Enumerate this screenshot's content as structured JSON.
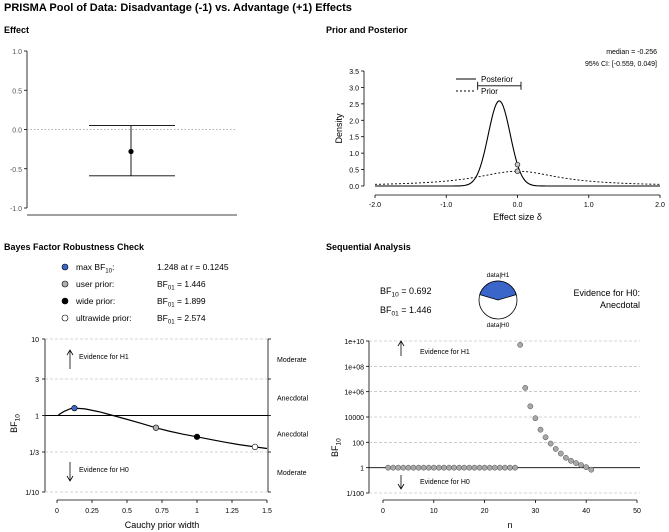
{
  "page_title": "PRISMA Pool of Data: Disadvantage (-1) vs. Advantage (+1) Effects",
  "panels": {
    "effect": "Effect",
    "prior_posterior": "Prior and Posterior",
    "robustness": "Bayes Factor Robustness Check",
    "sequential": "Sequential Analysis"
  },
  "colors": {
    "max_bf_point": "#3b66c9",
    "user_prior_point": "#b0b0b0",
    "wide_prior_point": "#000000",
    "ultrawide_prior_point": "#ffffff",
    "sequential_point": "#a8a8a8",
    "pie_h1": "#3b66c9",
    "pie_h0": "#ffffff"
  },
  "chart_data": [
    {
      "id": "effect",
      "type": "errorbar",
      "yticks": [
        1.0,
        0.5,
        0.0,
        -0.5,
        -1.0
      ],
      "ytick_labels": [
        "1.0",
        "0.5",
        "0.0",
        "-0.5",
        "-1.0"
      ],
      "ylim": [
        -1.0,
        1.0
      ],
      "point": -0.28,
      "ci": [
        -0.59,
        0.05
      ],
      "reference_line": 0.0
    },
    {
      "id": "prior_posterior",
      "type": "line",
      "xlabel": "Effect size δ",
      "ylabel": "Density",
      "xlim": [
        -2,
        2
      ],
      "ylim": [
        0,
        3.5
      ],
      "xticks": [
        -2,
        -1,
        0,
        1,
        2
      ],
      "xtick_labels": [
        "-2.0",
        "-1.0",
        "0.0",
        "1.0",
        "2.0"
      ],
      "yticks": [
        0,
        0.5,
        1,
        1.5,
        2,
        2.5,
        3,
        3.5
      ],
      "ytick_labels": [
        "0.0",
        "0.5",
        "1.0",
        "1.5",
        "2.0",
        "2.5",
        "3.0",
        "3.5"
      ],
      "series": [
        {
          "name": "Posterior",
          "style": "solid",
          "mean": -0.256,
          "sd": 0.154
        },
        {
          "name": "Prior",
          "style": "dotted",
          "cauchy_scale": 0.707
        }
      ],
      "median_label": "median = -0.256",
      "ci_label": "95% CI: [-0.559, 0.049]",
      "ci": [
        -0.559,
        0.049
      ],
      "ci_bar_y": 3.05,
      "point_at_zero": {
        "x": 0,
        "posterior": 0.65,
        "prior": 0.45
      }
    },
    {
      "id": "robustness",
      "type": "line",
      "xlabel": "Cauchy prior width",
      "ylabel": "BF",
      "ylabel_sub": "10",
      "xlim": [
        0,
        1.5
      ],
      "xticks": [
        0,
        0.25,
        0.5,
        0.75,
        1,
        1.25,
        1.5
      ],
      "xtick_labels": [
        "0",
        "0.25",
        "0.5",
        "0.75",
        "1",
        "1.25",
        "1.5"
      ],
      "yscale": "log",
      "ylim": [
        0.1,
        10
      ],
      "yticks": [
        10,
        3,
        1,
        0.3333,
        0.1
      ],
      "ytick_labels": [
        "10",
        "3",
        "1",
        "1/3",
        "1/10"
      ],
      "right_labels": [
        "Moderate",
        "Anecdotal",
        "Anecdotal",
        "Moderate"
      ],
      "evidence_h1": "Evidence for H1",
      "evidence_h0": "Evidence for H0",
      "curve": {
        "x": [
          0.01,
          0.05,
          0.1,
          0.1245,
          0.2,
          0.3,
          0.4,
          0.5,
          0.6,
          0.707,
          0.8,
          0.9,
          1.0,
          1.1,
          1.2,
          1.3,
          1.414,
          1.5
        ],
        "y": [
          1.02,
          1.13,
          1.235,
          1.248,
          1.22,
          1.12,
          1.0,
          0.89,
          0.79,
          0.691,
          0.625,
          0.57,
          0.527,
          0.485,
          0.448,
          0.416,
          0.389,
          0.37
        ]
      },
      "legend": [
        {
          "label": "max BF",
          "label_sub": "10",
          "label_suffix": ":",
          "value": "1.248 at r = 0.1245",
          "color": "#3b66c9"
        },
        {
          "label": "user prior:",
          "value_prefix": "BF",
          "value_sub": "01",
          "value": " = 1.446",
          "color": "#b0b0b0"
        },
        {
          "label": "wide prior:",
          "value_prefix": "BF",
          "value_sub": "01",
          "value": " = 1.899",
          "color": "#000000"
        },
        {
          "label": "ultrawide prior:",
          "value_prefix": "BF",
          "value_sub": "01",
          "value": " = 2.574",
          "color": "#ffffff"
        }
      ],
      "points": [
        {
          "x": 0.1245,
          "y": 1.248,
          "color": "#3b66c9"
        },
        {
          "x": 0.707,
          "y": 0.6916,
          "color": "#b0b0b0"
        },
        {
          "x": 1.0,
          "y": 0.5266,
          "color": "#000000"
        },
        {
          "x": 1.414,
          "y": 0.3885,
          "color": "#ffffff"
        }
      ]
    },
    {
      "id": "sequential",
      "type": "scatter",
      "xlabel": "n",
      "ylabel": "BF",
      "ylabel_sub": "10",
      "xlim": [
        0,
        50
      ],
      "xticks": [
        0,
        10,
        20,
        30,
        40,
        50
      ],
      "xtick_labels": [
        "0",
        "10",
        "20",
        "30",
        "40",
        "50"
      ],
      "yscale": "log",
      "ylim": [
        0.01,
        10000000000
      ],
      "yticks": [
        10000000000,
        100000000,
        1000000,
        10000,
        100,
        1,
        0.01
      ],
      "ytick_labels": [
        "1e+10",
        "1e+08",
        "1e+06",
        "10000",
        "100",
        "1",
        "1/100"
      ],
      "bf10_prefix": "BF",
      "bf10_sub": "10",
      "bf10_value": " = 0.692",
      "bf01_prefix": "BF",
      "bf01_sub": "01",
      "bf01_value": " = 1.446",
      "pie_top_label": "data|H1",
      "pie_bottom_label": "data|H0",
      "pie_h1_fraction": 0.409,
      "evidence_label_line1": "Evidence for H0:",
      "evidence_label_line2": "Anecdotal",
      "evidence_h1": "Evidence for H1",
      "evidence_h0": "Evidence for H0",
      "n": [
        1,
        2,
        3,
        4,
        5,
        6,
        7,
        8,
        9,
        10,
        11,
        12,
        13,
        14,
        15,
        16,
        17,
        18,
        19,
        20,
        21,
        22,
        23,
        24,
        25,
        26,
        27,
        28,
        29,
        30,
        31,
        32,
        33,
        34,
        35,
        36,
        37,
        38,
        39,
        40,
        41
      ],
      "bf": [
        1,
        1,
        1,
        1,
        1,
        1,
        1,
        1,
        1,
        1,
        1,
        1,
        1,
        1,
        1,
        1,
        1,
        1,
        1,
        1,
        1,
        1,
        1,
        1,
        1,
        1,
        5000000000,
        2000000,
        70000,
        8000,
        1000,
        250,
        80,
        30,
        13,
        6,
        3.5,
        2.3,
        1.6,
        1.1,
        0.692
      ]
    }
  ]
}
